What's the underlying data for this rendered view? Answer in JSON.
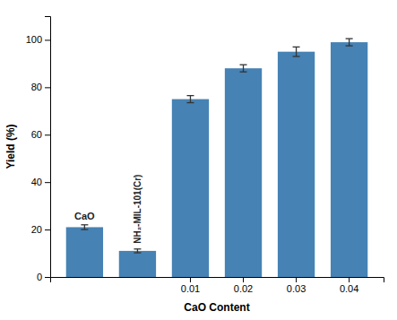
{
  "chart_data": {
    "type": "bar",
    "categories": [
      null,
      null,
      "0.01",
      "0.02",
      "0.03",
      "0.04"
    ],
    "values": [
      21,
      11,
      75,
      88,
      95,
      99
    ],
    "errors": [
      1.0,
      0.8,
      1.5,
      1.5,
      2.0,
      1.5
    ],
    "xlabel": "CaO Content",
    "ylabel": "Yield (%)",
    "ylim": [
      0,
      110
    ],
    "yticks": [
      0,
      20,
      40,
      60,
      80,
      100
    ],
    "annotations": [
      "CaO",
      "NH₂-MIL-101(Cr)"
    ]
  }
}
